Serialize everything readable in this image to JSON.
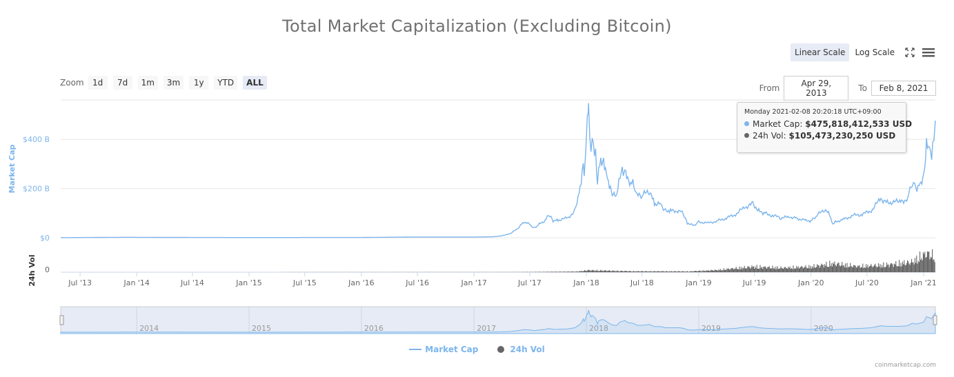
{
  "title": "Total Market Capitalization (Excluding Bitcoin)",
  "scale_buttons": {
    "linear": "Linear Scale",
    "log": "Log Scale"
  },
  "zoom": {
    "label": "Zoom",
    "buttons": [
      "1d",
      "7d",
      "1m",
      "3m",
      "1y",
      "YTD",
      "ALL"
    ],
    "active": "ALL"
  },
  "range": {
    "from_label": "From",
    "from": "Apr 29, 2013",
    "to_label": "To",
    "to": "Feb 8, 2021"
  },
  "tooltip": {
    "date": "Monday 2021-02-08 20:20:18 UTC+09:00",
    "rows": [
      {
        "label": "Market Cap:",
        "value": "$475,818,412,533 USD",
        "color": "#7cb5ec"
      },
      {
        "label": "24h Vol:",
        "value": "$105,473,230,250 USD",
        "color": "#666666"
      }
    ]
  },
  "legend": [
    {
      "name": "Market Cap",
      "type": "line",
      "color": "#7cb5ec"
    },
    {
      "name": "24h Vol",
      "type": "dot",
      "color": "#666666"
    }
  ],
  "credits": "coinmarketcap.com",
  "colors": {
    "market_cap": "#7cb5ec",
    "volume": "#555555",
    "navigator_fill": "#e6ebf5",
    "grid": "#e6e6e6"
  },
  "icons": [
    "fullscreen-icon",
    "menu-icon"
  ],
  "chart_data": {
    "type": "line",
    "title": "Total Market Capitalization (Excluding Bitcoin)",
    "xlim": [
      "2013-04-29",
      "2021-02-08"
    ],
    "x_ticks": [
      [
        "2013-07-01",
        "Jul '13"
      ],
      [
        "2014-01-01",
        "Jan '14"
      ],
      [
        "2014-07-01",
        "Jul '14"
      ],
      [
        "2015-01-01",
        "Jan '15"
      ],
      [
        "2015-07-01",
        "Jul '15"
      ],
      [
        "2016-01-01",
        "Jan '16"
      ],
      [
        "2016-07-01",
        "Jul '16"
      ],
      [
        "2017-01-01",
        "Jan '17"
      ],
      [
        "2017-07-01",
        "Jul '17"
      ],
      [
        "2018-01-01",
        "Jan '18"
      ],
      [
        "2018-07-01",
        "Jul '18"
      ],
      [
        "2019-01-01",
        "Jan '19"
      ],
      [
        "2019-07-01",
        "Jul '19"
      ],
      [
        "2020-01-01",
        "Jan '20"
      ],
      [
        "2020-07-01",
        "Jul '20"
      ],
      [
        "2021-01-01",
        "Jan '21"
      ]
    ],
    "navigator_years": [
      "2014",
      "2015",
      "2016",
      "2017",
      "2018",
      "2019",
      "2020"
    ],
    "market_cap": {
      "name": "Market Cap",
      "ylabel": "Market Cap",
      "unit": "B USD",
      "ylim": [
        0,
        560
      ],
      "y_ticks": [
        [
          0,
          "$0"
        ],
        [
          200,
          "$200 B"
        ],
        [
          400,
          "$400 B"
        ]
      ],
      "points": [
        [
          "2013-04-29",
          0.5
        ],
        [
          "2013-12-01",
          2
        ],
        [
          "2014-03-01",
          1.5
        ],
        [
          "2015-01-01",
          0.8
        ],
        [
          "2016-01-01",
          1.2
        ],
        [
          "2016-06-15",
          3
        ],
        [
          "2017-01-01",
          3
        ],
        [
          "2017-03-01",
          4
        ],
        [
          "2017-04-01",
          8
        ],
        [
          "2017-05-01",
          18
        ],
        [
          "2017-05-25",
          40
        ],
        [
          "2017-06-12",
          65
        ],
        [
          "2017-07-01",
          55
        ],
        [
          "2017-07-15",
          40
        ],
        [
          "2017-08-01",
          55
        ],
        [
          "2017-08-20",
          70
        ],
        [
          "2017-09-01",
          92
        ],
        [
          "2017-09-15",
          70
        ],
        [
          "2017-10-01",
          72
        ],
        [
          "2017-11-01",
          80
        ],
        [
          "2017-11-25",
          110
        ],
        [
          "2017-12-05",
          160
        ],
        [
          "2017-12-15",
          220
        ],
        [
          "2017-12-22",
          330
        ],
        [
          "2017-12-25",
          270
        ],
        [
          "2017-12-30",
          350
        ],
        [
          "2018-01-04",
          460
        ],
        [
          "2018-01-07",
          470
        ],
        [
          "2018-01-08",
          545
        ],
        [
          "2018-01-12",
          440
        ],
        [
          "2018-01-16",
          380
        ],
        [
          "2018-01-20",
          410
        ],
        [
          "2018-01-31",
          340
        ],
        [
          "2018-02-06",
          200
        ],
        [
          "2018-02-10",
          280
        ],
        [
          "2018-02-20",
          310
        ],
        [
          "2018-03-01",
          300
        ],
        [
          "2018-03-10",
          250
        ],
        [
          "2018-03-20",
          200
        ],
        [
          "2018-04-01",
          170
        ],
        [
          "2018-04-10",
          170
        ],
        [
          "2018-04-20",
          250
        ],
        [
          "2018-05-01",
          275
        ],
        [
          "2018-05-06",
          290
        ],
        [
          "2018-05-15",
          240
        ],
        [
          "2018-06-01",
          220
        ],
        [
          "2018-06-15",
          170
        ],
        [
          "2018-07-01",
          170
        ],
        [
          "2018-07-25",
          190
        ],
        [
          "2018-08-10",
          140
        ],
        [
          "2018-09-01",
          135
        ],
        [
          "2018-09-15",
          110
        ],
        [
          "2018-10-01",
          110
        ],
        [
          "2018-11-01",
          110
        ],
        [
          "2018-11-15",
          90
        ],
        [
          "2018-11-25",
          60
        ],
        [
          "2018-12-15",
          50
        ],
        [
          "2019-01-01",
          65
        ],
        [
          "2019-02-01",
          60
        ],
        [
          "2019-03-01",
          68
        ],
        [
          "2019-04-01",
          80
        ],
        [
          "2019-05-01",
          95
        ],
        [
          "2019-06-01",
          125
        ],
        [
          "2019-06-26",
          140
        ],
        [
          "2019-07-15",
          110
        ],
        [
          "2019-08-01",
          100
        ],
        [
          "2019-09-01",
          90
        ],
        [
          "2019-09-25",
          80
        ],
        [
          "2019-10-25",
          85
        ],
        [
          "2019-11-15",
          80
        ],
        [
          "2019-12-15",
          70
        ],
        [
          "2020-01-01",
          68
        ],
        [
          "2020-01-20",
          90
        ],
        [
          "2020-02-14",
          115
        ],
        [
          "2020-03-01",
          95
        ],
        [
          "2020-03-12",
          55
        ],
        [
          "2020-03-20",
          65
        ],
        [
          "2020-04-15",
          75
        ],
        [
          "2020-05-15",
          90
        ],
        [
          "2020-06-15",
          95
        ],
        [
          "2020-07-15",
          110
        ],
        [
          "2020-08-15",
          160
        ],
        [
          "2020-09-05",
          145
        ],
        [
          "2020-10-15",
          145
        ],
        [
          "2020-11-10",
          160
        ],
        [
          "2020-11-25",
          220
        ],
        [
          "2020-12-10",
          200
        ],
        [
          "2020-12-20",
          225
        ],
        [
          "2021-01-01",
          250
        ],
        [
          "2021-01-10",
          380
        ],
        [
          "2021-01-20",
          360
        ],
        [
          "2021-01-27",
          330
        ],
        [
          "2021-02-03",
          420
        ],
        [
          "2021-02-08",
          476
        ]
      ]
    },
    "volume": {
      "name": "24h Vol",
      "ylabel": "24h Vol",
      "unit": "B USD",
      "ylim": [
        0,
        150
      ],
      "y_ticks": [
        [
          0,
          "0"
        ]
      ],
      "points": [
        [
          "2013-04-29",
          0
        ],
        [
          "2017-04-01",
          1
        ],
        [
          "2017-07-01",
          2
        ],
        [
          "2017-12-01",
          5
        ],
        [
          "2018-01-08",
          14
        ],
        [
          "2018-06-01",
          7
        ],
        [
          "2018-12-01",
          6
        ],
        [
          "2019-03-01",
          15
        ],
        [
          "2019-06-26",
          38
        ],
        [
          "2019-10-01",
          30
        ],
        [
          "2020-01-01",
          38
        ],
        [
          "2020-03-12",
          60
        ],
        [
          "2020-06-01",
          40
        ],
        [
          "2020-09-01",
          50
        ],
        [
          "2020-11-25",
          70
        ],
        [
          "2021-01-11",
          130
        ],
        [
          "2021-02-08",
          105
        ]
      ]
    }
  }
}
